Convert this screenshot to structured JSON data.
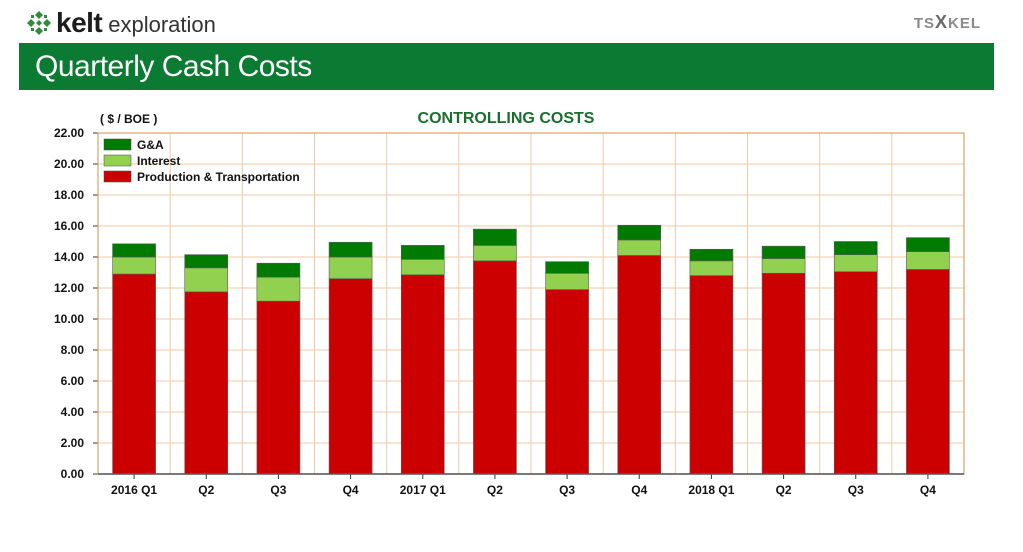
{
  "header": {
    "logo_word": "kelt",
    "logo_sub": "exploration",
    "ticker_left": "TS",
    "ticker_x": "X",
    "ticker_right": "KEL",
    "banner_title": "Quarterly Cash Costs"
  },
  "chart_data": {
    "type": "bar",
    "stacked": true,
    "title": "CONTROLLING COSTS",
    "ylabel": "( $ / BOE )",
    "ylim": [
      0,
      22
    ],
    "ytick_step": 2,
    "ytick_labels": [
      "0.00",
      "2.00",
      "4.00",
      "6.00",
      "8.00",
      "10.00",
      "12.00",
      "14.00",
      "16.00",
      "18.00",
      "20.00",
      "22.00"
    ],
    "grid": true,
    "legend_position": "top-left",
    "categories": [
      "2016 Q1",
      "Q2",
      "Q3",
      "Q4",
      "2017 Q1",
      "Q2",
      "Q3",
      "Q4",
      "2018 Q1",
      "Q2",
      "Q3",
      "Q4"
    ],
    "series": [
      {
        "name": "Production & Transportation",
        "color": "#cc0000",
        "values": [
          12.9,
          11.75,
          11.15,
          12.6,
          12.85,
          13.75,
          11.9,
          14.1,
          12.8,
          12.95,
          13.05,
          13.2
        ]
      },
      {
        "name": "Interest",
        "color": "#92d050",
        "values": [
          1.1,
          1.55,
          1.55,
          1.4,
          1.0,
          1.0,
          1.05,
          1.0,
          0.95,
          0.95,
          1.1,
          1.15
        ]
      },
      {
        "name": "G&A",
        "color": "#007a00",
        "values": [
          0.85,
          0.85,
          0.9,
          0.95,
          0.9,
          1.05,
          0.75,
          0.95,
          0.75,
          0.8,
          0.85,
          0.9
        ]
      }
    ],
    "legend_order": [
      "G&A",
      "Interest",
      "Production & Transportation"
    ]
  }
}
